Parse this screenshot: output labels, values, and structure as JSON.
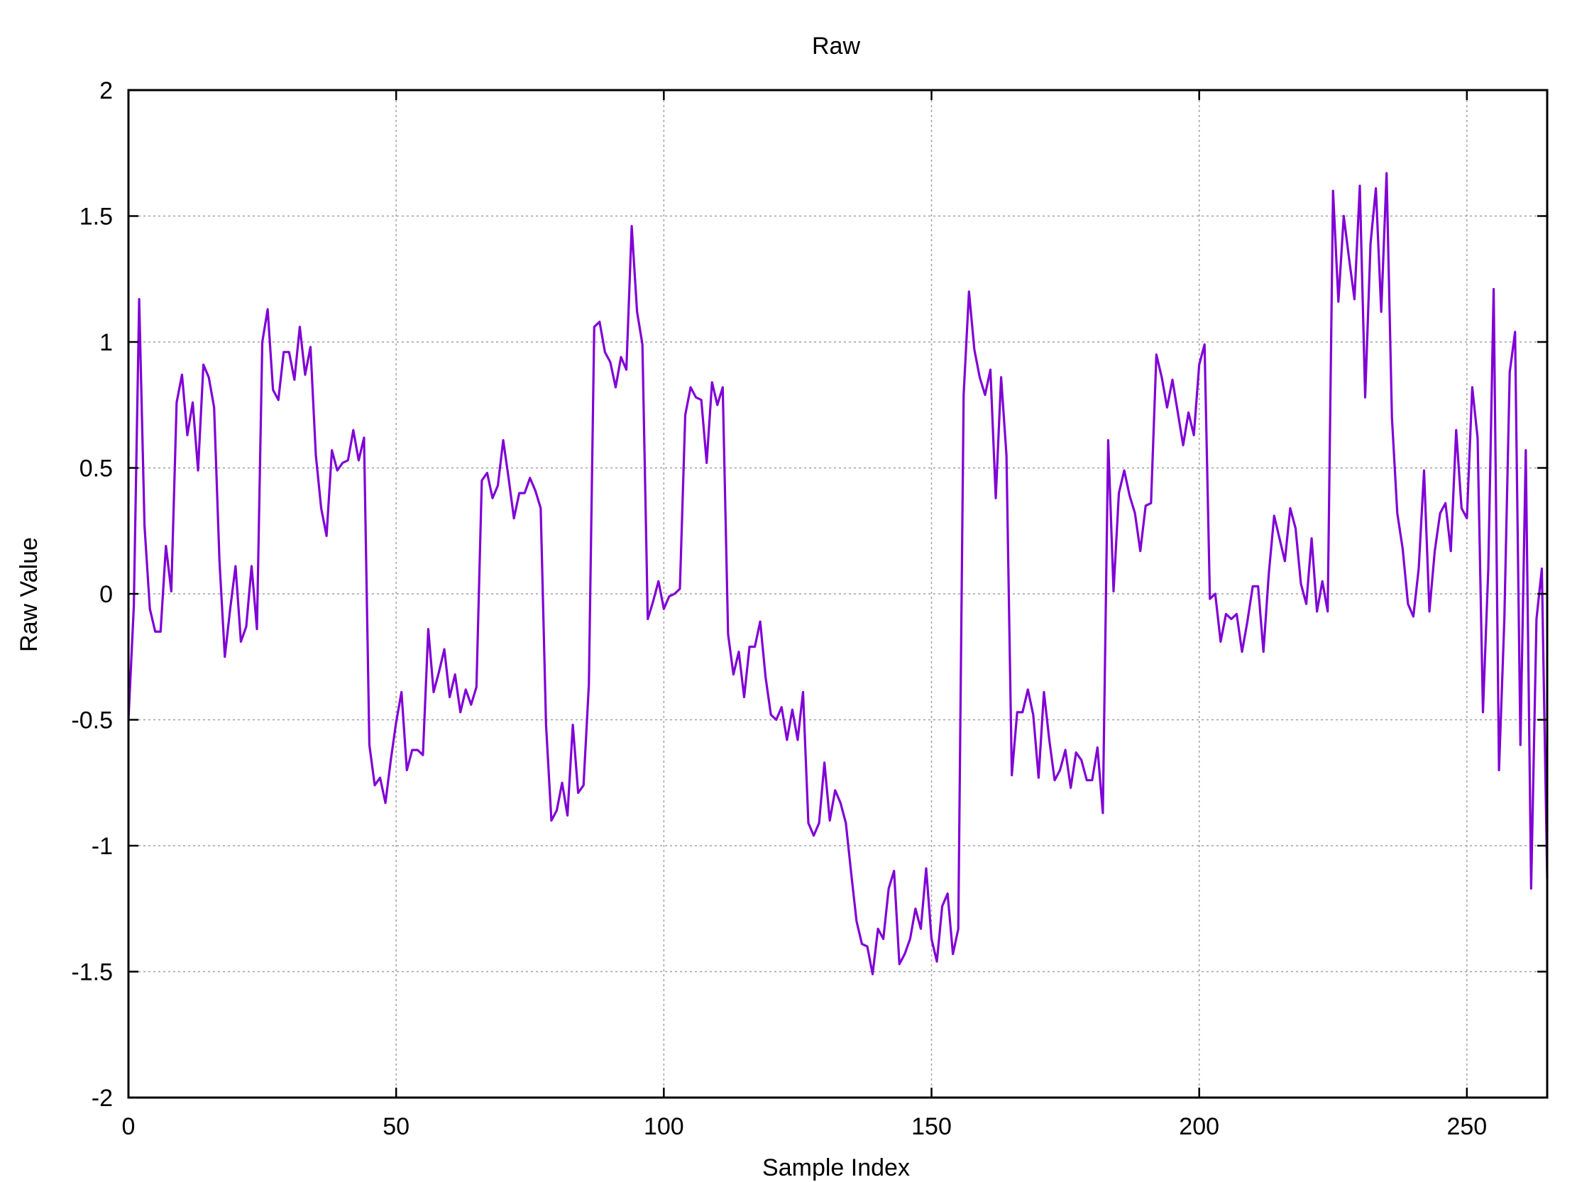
{
  "chart_data": {
    "type": "line",
    "title": "Raw",
    "xlabel": "Sample Index",
    "ylabel": "Raw Value",
    "xlim": [
      0,
      265
    ],
    "ylim": [
      -2,
      2
    ],
    "grid": true,
    "legend": "none",
    "xticks": [
      0,
      50,
      100,
      150,
      200,
      250
    ],
    "yticks": [
      -2,
      -1.5,
      -1,
      -0.5,
      0,
      0.5,
      1,
      1.5,
      2
    ],
    "xtick_labels": [
      "0",
      "50",
      "100",
      "150",
      "200",
      "250"
    ],
    "ytick_labels": [
      "-2",
      "-1.5",
      "-1",
      "-0.5",
      "0",
      "0.5",
      "1",
      "1.5",
      "2"
    ],
    "series_color": "#8000d6",
    "series": [
      {
        "values": [
          -0.5,
          -0.05,
          1.17,
          0.27,
          -0.06,
          -0.15,
          -0.15,
          0.19,
          0.01,
          0.76,
          0.87,
          0.63,
          0.76,
          0.49,
          0.91,
          0.86,
          0.74,
          0.13,
          -0.25,
          -0.06,
          0.11,
          -0.19,
          -0.13,
          0.11,
          -0.14,
          1.0,
          1.13,
          0.81,
          0.77,
          0.96,
          0.96,
          0.85,
          1.06,
          0.87,
          0.98,
          0.55,
          0.34,
          0.23,
          0.57,
          0.49,
          0.52,
          0.53,
          0.65,
          0.53,
          0.62,
          -0.6,
          -0.76,
          -0.73,
          -0.83,
          -0.66,
          -0.51,
          -0.39,
          -0.7,
          -0.62,
          -0.62,
          -0.64,
          -0.14,
          -0.39,
          -0.31,
          -0.22,
          -0.41,
          -0.32,
          -0.47,
          -0.38,
          -0.44,
          -0.37,
          0.45,
          0.48,
          0.38,
          0.43,
          0.61,
          0.46,
          0.3,
          0.4,
          0.4,
          0.46,
          0.41,
          0.34,
          -0.52,
          -0.9,
          -0.86,
          -0.75,
          -0.88,
          -0.52,
          -0.79,
          -0.76,
          -0.36,
          1.06,
          1.08,
          0.96,
          0.92,
          0.82,
          0.94,
          0.89,
          1.46,
          1.12,
          0.99,
          -0.1,
          -0.03,
          0.05,
          -0.06,
          -0.01,
          0.0,
          0.02,
          0.71,
          0.82,
          0.78,
          0.77,
          0.52,
          0.84,
          0.75,
          0.82,
          -0.16,
          -0.32,
          -0.23,
          -0.41,
          -0.21,
          -0.21,
          -0.11,
          -0.33,
          -0.48,
          -0.5,
          -0.45,
          -0.58,
          -0.46,
          -0.58,
          -0.39,
          -0.91,
          -0.96,
          -0.91,
          -0.67,
          -0.9,
          -0.78,
          -0.83,
          -0.91,
          -1.11,
          -1.3,
          -1.39,
          -1.4,
          -1.51,
          -1.33,
          -1.37,
          -1.17,
          -1.1,
          -1.47,
          -1.43,
          -1.37,
          -1.25,
          -1.33,
          -1.09,
          -1.37,
          -1.46,
          -1.24,
          -1.19,
          -1.43,
          -1.33,
          0.79,
          1.2,
          0.97,
          0.86,
          0.79,
          0.89,
          0.38,
          0.86,
          0.55,
          -0.72,
          -0.47,
          -0.47,
          -0.38,
          -0.48,
          -0.73,
          -0.39,
          -0.58,
          -0.74,
          -0.7,
          -0.62,
          -0.77,
          -0.63,
          -0.66,
          -0.74,
          -0.74,
          -0.61,
          -0.87,
          0.61,
          0.01,
          0.4,
          0.49,
          0.39,
          0.32,
          0.17,
          0.35,
          0.36,
          0.95,
          0.86,
          0.74,
          0.85,
          0.72,
          0.59,
          0.72,
          0.63,
          0.91,
          0.99,
          -0.02,
          0.0,
          -0.19,
          -0.08,
          -0.1,
          -0.08,
          -0.23,
          -0.11,
          0.03,
          0.03,
          -0.23,
          0.08,
          0.31,
          0.22,
          0.13,
          0.34,
          0.26,
          0.04,
          -0.04,
          0.22,
          -0.07,
          0.05,
          -0.07,
          1.6,
          1.16,
          1.5,
          1.33,
          1.17,
          1.62,
          0.78,
          1.39,
          1.61,
          1.12,
          1.67,
          0.7,
          0.32,
          0.18,
          -0.04,
          -0.09,
          0.1,
          0.49,
          -0.07,
          0.17,
          0.32,
          0.36,
          0.17,
          0.65,
          0.34,
          0.3,
          0.82,
          0.62,
          -0.47,
          0.1,
          1.21,
          -0.7,
          -0.1,
          0.88,
          1.04,
          -0.6,
          0.57,
          -1.17,
          -0.1,
          0.1,
          -1.13
        ]
      }
    ]
  }
}
